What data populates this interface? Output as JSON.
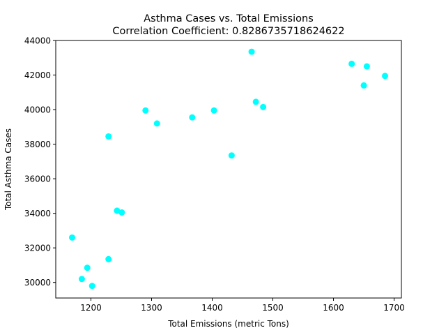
{
  "chart_data": {
    "type": "scatter",
    "title": "Asthma Cases vs. Total Emissions",
    "subtitle": "Correlation Coefficient: 0.8286735718624622",
    "xlabel": "Total Emissions (metric Tons)",
    "ylabel": "Total Asthma Cases",
    "xlim": [
      1142,
      1712
    ],
    "ylim": [
      29100,
      44000
    ],
    "xticks": [
      1200,
      1300,
      1400,
      1500,
      1600,
      1700
    ],
    "yticks": [
      30000,
      32000,
      34000,
      36000,
      38000,
      40000,
      42000,
      44000
    ],
    "grid": false,
    "marker_color": "#00ffff",
    "points": [
      {
        "x": 1169,
        "y": 32600
      },
      {
        "x": 1185,
        "y": 30200
      },
      {
        "x": 1194,
        "y": 30850
      },
      {
        "x": 1202,
        "y": 29800
      },
      {
        "x": 1229,
        "y": 31350
      },
      {
        "x": 1229,
        "y": 38450
      },
      {
        "x": 1243,
        "y": 34150
      },
      {
        "x": 1251,
        "y": 34050
      },
      {
        "x": 1290,
        "y": 39950
      },
      {
        "x": 1309,
        "y": 39200
      },
      {
        "x": 1367,
        "y": 39550
      },
      {
        "x": 1403,
        "y": 39950
      },
      {
        "x": 1432,
        "y": 37350
      },
      {
        "x": 1465,
        "y": 43350
      },
      {
        "x": 1472,
        "y": 40450
      },
      {
        "x": 1484,
        "y": 40150
      },
      {
        "x": 1630,
        "y": 42650
      },
      {
        "x": 1650,
        "y": 41400
      },
      {
        "x": 1655,
        "y": 42500
      },
      {
        "x": 1685,
        "y": 41950
      }
    ]
  }
}
